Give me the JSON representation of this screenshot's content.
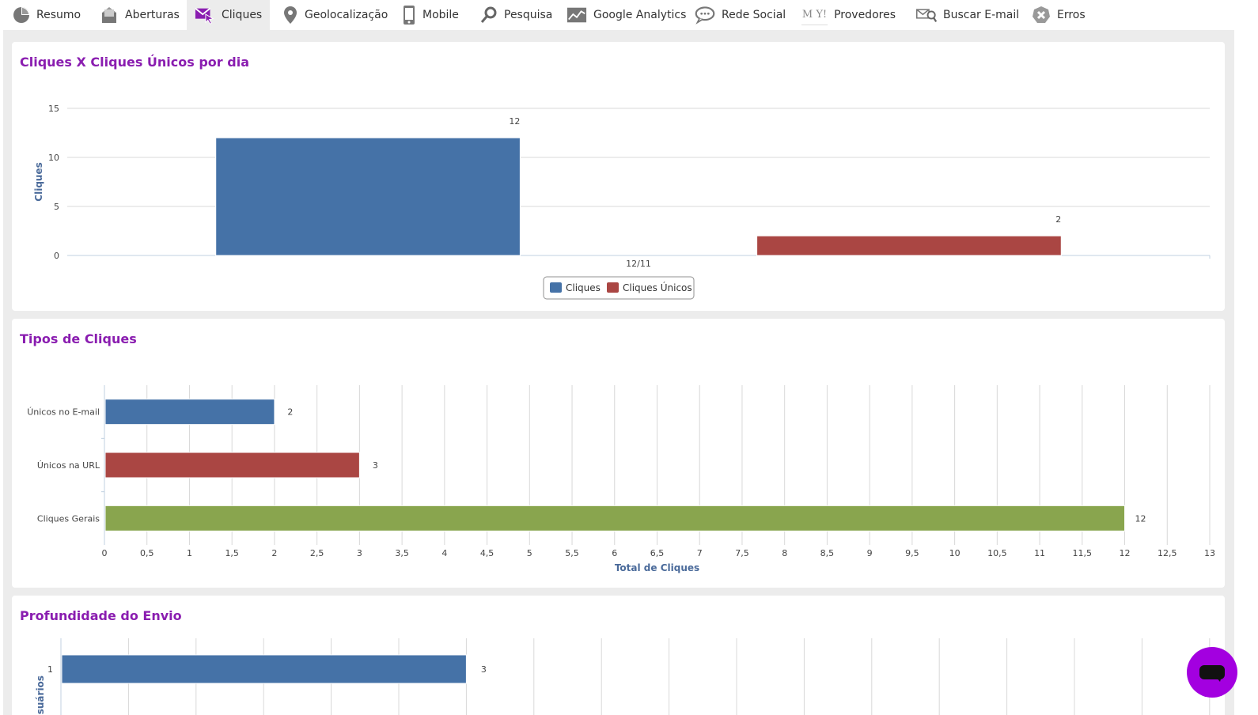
{
  "tabs": [
    {
      "label": "Resumo",
      "icon": "pie-chart-icon"
    },
    {
      "label": "Aberturas",
      "icon": "envelope-open-icon"
    },
    {
      "label": "Cliques",
      "icon": "envelope-cursor-icon",
      "active": true
    },
    {
      "label": "Geolocalização",
      "icon": "map-pin-icon"
    },
    {
      "label": "Mobile",
      "icon": "mobile-phone-icon"
    },
    {
      "label": "Pesquisa",
      "icon": "magnifier-icon"
    },
    {
      "label": "Google Analytics",
      "icon": "analytics-chart-icon"
    },
    {
      "label": "Rede Social",
      "icon": "speech-bubble-icon"
    },
    {
      "label": "Provedores",
      "icon": "providers-logo-icon",
      "logo_text": "M Y!"
    },
    {
      "label": "Buscar E-mail",
      "icon": "envelope-search-icon"
    },
    {
      "label": "Erros",
      "icon": "error-x-icon"
    }
  ],
  "colors": {
    "accent": "#8a1db0",
    "blue": "#4572a7",
    "red": "#aa4643",
    "green": "#89a54e",
    "chat": "#a300e0"
  },
  "charts": {
    "daily": {
      "title": "Cliques X Cliques Únicos por dia",
      "chart_data": {
        "type": "bar",
        "categories": [
          "12/11"
        ],
        "series": [
          {
            "name": "Cliques",
            "values": [
              12
            ]
          },
          {
            "name": "Cliques Únicos",
            "values": [
              2
            ]
          }
        ],
        "ylabel": "Cliques",
        "xlabel": "",
        "yticks": [
          "0",
          "5",
          "10",
          "15"
        ],
        "ylim": [
          0,
          15
        ],
        "grid": true,
        "legend": "bottom-center"
      }
    },
    "types": {
      "title": "Tipos de Cliques",
      "chart_data": {
        "type": "bar",
        "orientation": "horizontal",
        "categories": [
          "Únicos no E-mail",
          "Únicos na URL",
          "Cliques Gerais"
        ],
        "values": [
          2,
          3,
          12
        ],
        "xlabel": "Total de Cliques",
        "xticks": [
          "0",
          "0,5",
          "1",
          "1,5",
          "2",
          "2,5",
          "3",
          "3,5",
          "4",
          "4,5",
          "5",
          "5,5",
          "6",
          "6,5",
          "7",
          "7,5",
          "8",
          "8,5",
          "9",
          "9,5",
          "10",
          "10,5",
          "11",
          "11,5",
          "12",
          "12,5",
          "13"
        ],
        "xlim": [
          0,
          13
        ],
        "grid": true
      }
    },
    "depth": {
      "title": "Profundidade do Envio",
      "chart_data": {
        "type": "bar",
        "orientation": "horizontal",
        "categories": [
          "1"
        ],
        "values": [
          3
        ],
        "ylabel": "Usuários",
        "grid": true
      }
    }
  }
}
